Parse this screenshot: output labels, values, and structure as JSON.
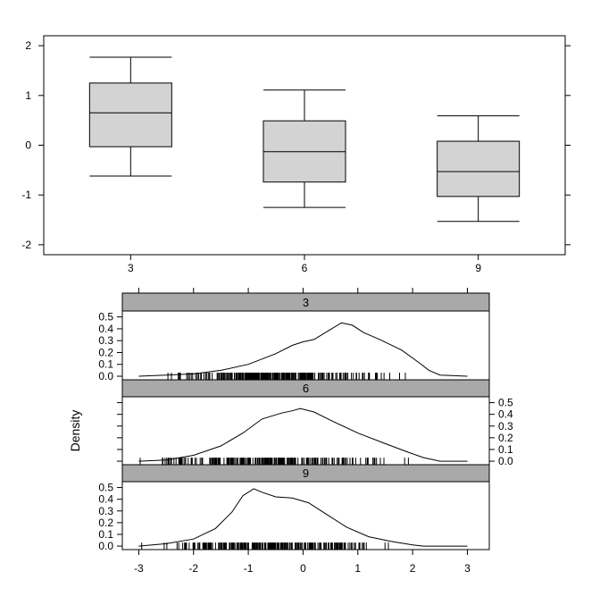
{
  "chart_data": [
    {
      "type": "box",
      "categories": [
        "3",
        "6",
        "9"
      ],
      "boxes": [
        {
          "category": "3",
          "min": -0.62,
          "q1": -0.03,
          "median": 0.65,
          "q3": 1.25,
          "max": 1.77
        },
        {
          "category": "6",
          "min": -1.25,
          "q1": -0.74,
          "median": -0.13,
          "q3": 0.49,
          "max": 1.11
        },
        {
          "category": "9",
          "min": -1.53,
          "q1": -1.03,
          "median": -0.53,
          "q3": 0.08,
          "max": 0.59
        }
      ],
      "ylim": [
        -2.2,
        2.2
      ],
      "yticks": [
        "-2",
        "-1",
        "0",
        "1",
        "2"
      ],
      "xlabel": "",
      "ylabel": "",
      "box_fill": "#d3d3d3"
    },
    {
      "type": "line",
      "layout": "stacked panels with rug",
      "ylabel": "Density",
      "xlim": [
        -3.3,
        3.4
      ],
      "xticks": [
        "-3",
        "-2",
        "-1",
        "0",
        "1",
        "2",
        "3"
      ],
      "ylim": [
        -0.03,
        0.55
      ],
      "yticks": [
        "0.0",
        "0.1",
        "0.2",
        "0.3",
        "0.4",
        "0.5"
      ],
      "strip_fill": "#a9a9a9",
      "panels": [
        {
          "name": "3",
          "x": [
            -3.0,
            -2.5,
            -2.0,
            -1.5,
            -1.0,
            -0.5,
            -0.2,
            0.0,
            0.2,
            0.45,
            0.7,
            0.9,
            1.1,
            1.4,
            1.8,
            2.1,
            2.3,
            2.5,
            3.0
          ],
          "y": [
            0.0,
            0.01,
            0.02,
            0.05,
            0.1,
            0.19,
            0.26,
            0.29,
            0.31,
            0.38,
            0.45,
            0.43,
            0.37,
            0.31,
            0.22,
            0.12,
            0.05,
            0.01,
            0.0
          ],
          "rug_range": [
            -3.0,
            2.3
          ],
          "y_axis_side": "left"
        },
        {
          "name": "6",
          "x": [
            -3.0,
            -2.5,
            -2.0,
            -1.5,
            -1.1,
            -0.75,
            -0.4,
            -0.2,
            -0.05,
            0.2,
            0.5,
            1.0,
            1.5,
            1.9,
            2.2,
            2.5,
            3.0
          ],
          "y": [
            0.0,
            0.01,
            0.05,
            0.13,
            0.24,
            0.36,
            0.41,
            0.43,
            0.45,
            0.42,
            0.35,
            0.24,
            0.15,
            0.08,
            0.03,
            0.0,
            0.0
          ],
          "rug_range": [
            -3.3,
            2.1
          ],
          "y_axis_side": "right"
        },
        {
          "name": "9",
          "x": [
            -3.0,
            -2.5,
            -2.0,
            -1.6,
            -1.3,
            -1.1,
            -0.9,
            -0.75,
            -0.5,
            -0.2,
            0.1,
            0.4,
            0.8,
            1.2,
            1.6,
            2.0,
            2.2,
            2.4,
            3.0
          ],
          "y": [
            0.0,
            0.02,
            0.06,
            0.15,
            0.29,
            0.43,
            0.49,
            0.46,
            0.42,
            0.41,
            0.37,
            0.28,
            0.16,
            0.08,
            0.04,
            0.01,
            0.0,
            0.0,
            0.0
          ],
          "rug_range": [
            -3.1,
            2.0
          ],
          "y_axis_side": "left"
        }
      ]
    }
  ]
}
